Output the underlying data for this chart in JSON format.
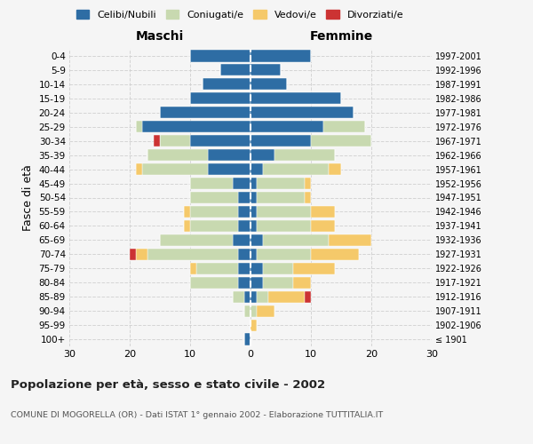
{
  "age_groups": [
    "100+",
    "95-99",
    "90-94",
    "85-89",
    "80-84",
    "75-79",
    "70-74",
    "65-69",
    "60-64",
    "55-59",
    "50-54",
    "45-49",
    "40-44",
    "35-39",
    "30-34",
    "25-29",
    "20-24",
    "15-19",
    "10-14",
    "5-9",
    "0-4"
  ],
  "birth_years": [
    "≤ 1901",
    "1902-1906",
    "1907-1911",
    "1912-1916",
    "1917-1921",
    "1922-1926",
    "1927-1931",
    "1932-1936",
    "1937-1941",
    "1942-1946",
    "1947-1951",
    "1952-1956",
    "1957-1961",
    "1962-1966",
    "1967-1971",
    "1972-1976",
    "1977-1981",
    "1982-1986",
    "1987-1991",
    "1992-1996",
    "1997-2001"
  ],
  "males": {
    "celibi": [
      1,
      0,
      0,
      1,
      2,
      2,
      2,
      3,
      2,
      2,
      2,
      3,
      7,
      7,
      10,
      18,
      15,
      10,
      8,
      5,
      10
    ],
    "coniugati": [
      0,
      0,
      1,
      2,
      8,
      7,
      15,
      12,
      8,
      8,
      8,
      7,
      11,
      10,
      5,
      1,
      0,
      0,
      0,
      0,
      0
    ],
    "vedovi": [
      0,
      0,
      0,
      0,
      0,
      1,
      2,
      0,
      1,
      1,
      0,
      0,
      1,
      0,
      0,
      0,
      0,
      0,
      0,
      0,
      0
    ],
    "divorziati": [
      0,
      0,
      0,
      0,
      0,
      0,
      1,
      0,
      0,
      0,
      0,
      0,
      0,
      0,
      1,
      0,
      0,
      0,
      0,
      0,
      0
    ]
  },
  "females": {
    "nubili": [
      0,
      0,
      0,
      1,
      2,
      2,
      1,
      2,
      1,
      1,
      1,
      1,
      2,
      4,
      10,
      12,
      17,
      15,
      6,
      5,
      10
    ],
    "coniugate": [
      0,
      0,
      1,
      2,
      5,
      5,
      9,
      11,
      9,
      9,
      8,
      8,
      11,
      10,
      10,
      7,
      0,
      0,
      0,
      0,
      0
    ],
    "vedove": [
      0,
      1,
      3,
      6,
      3,
      7,
      8,
      7,
      4,
      4,
      1,
      1,
      2,
      0,
      0,
      0,
      0,
      0,
      0,
      0,
      0
    ],
    "divorziate": [
      0,
      0,
      0,
      1,
      0,
      0,
      0,
      0,
      0,
      0,
      0,
      0,
      0,
      0,
      0,
      0,
      0,
      0,
      0,
      0,
      0
    ]
  },
  "colors": {
    "celibi_nubili": "#2e6da4",
    "coniugati": "#c8d9b0",
    "vedovi": "#f5c96a",
    "divorziati": "#cc3333"
  },
  "xlim": 30,
  "title": "Popolazione per età, sesso e stato civile - 2002",
  "subtitle": "COMUNE DI MOGORELLA (OR) - Dati ISTAT 1° gennaio 2002 - Elaborazione TUTTITALIA.IT",
  "ylabel_left": "Fasce di età",
  "xlabel_left": "Maschi",
  "xlabel_right": "Femmine",
  "bg_color": "#f5f5f5",
  "grid_color": "#cccccc"
}
